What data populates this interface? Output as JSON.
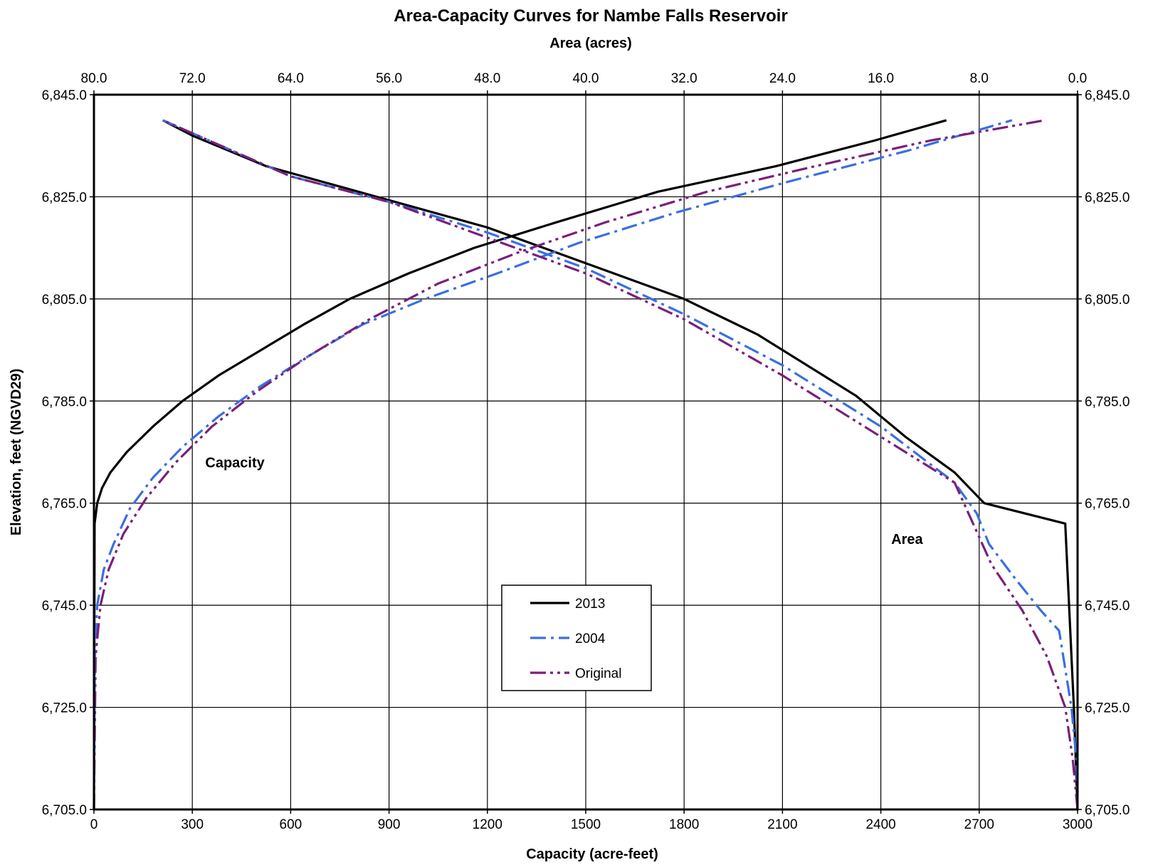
{
  "chart_data": {
    "type": "line",
    "title": "Area-Capacity Curves for Nambe Falls Reservoir",
    "top_axis_label": "Area (acres)",
    "xlabel": "Capacity (acre-feet)",
    "ylabel": "Elevation, feet (NGVD29)",
    "xlim": [
      0,
      3000
    ],
    "top_xlim": [
      80,
      0
    ],
    "ylim": [
      6705,
      6845
    ],
    "x_ticks": [
      "0",
      "300",
      "600",
      "900",
      "1200",
      "1500",
      "1800",
      "2100",
      "2400",
      "2700",
      "3000"
    ],
    "top_ticks": [
      "80.0",
      "72.0",
      "64.0",
      "56.0",
      "48.0",
      "40.0",
      "32.0",
      "24.0",
      "16.0",
      "8.0",
      "0.0"
    ],
    "y_ticks": [
      "6,705.0",
      "6,725.0",
      "6,745.0",
      "6,765.0",
      "6,785.0",
      "6,805.0",
      "6,825.0",
      "6,845.0"
    ],
    "grid": true,
    "legend_position": "bottom-center",
    "annotations": [
      {
        "text": "Capacity",
        "x": 430,
        "y": 6772
      },
      {
        "text": "Area",
        "x": 2480,
        "y": 6757
      }
    ],
    "series": [
      {
        "name": "2013",
        "color": "#000000",
        "dash": "solid",
        "capacity": {
          "x": [
            0,
            2,
            10,
            25,
            50,
            100,
            180,
            270,
            380,
            510,
            640,
            780,
            960,
            1160,
            1410,
            1720,
            2080,
            2380,
            2600
          ],
          "y": [
            6705,
            6761,
            6765,
            6768,
            6771,
            6775,
            6780,
            6785,
            6790,
            6795,
            6800,
            6805,
            6810,
            6815,
            6820,
            6826,
            6831,
            6836,
            6840
          ]
        },
        "area": {
          "x": [
            0.0,
            0.3,
            1.0,
            7.6,
            10.0,
            14.0,
            18.0,
            22.0,
            26.0,
            32.0,
            40.0,
            48.0,
            54.0,
            60.0,
            66.0,
            72.0,
            74.4
          ],
          "y": [
            6705,
            6725,
            6761,
            6765,
            6771,
            6778,
            6786,
            6792,
            6798,
            6805,
            6812,
            6819,
            6823,
            6827,
            6831,
            6837,
            6840
          ]
        }
      },
      {
        "name": "2004",
        "color": "#3a6fe0",
        "dash": "dashdot",
        "capacity": {
          "x": [
            0,
            3,
            10,
            30,
            60,
            110,
            180,
            270,
            380,
            510,
            660,
            820,
            1010,
            1230,
            1480,
            1780,
            2120,
            2480,
            2800
          ],
          "y": [
            6705,
            6735,
            6745,
            6752,
            6757,
            6764,
            6770,
            6776,
            6782,
            6788,
            6794,
            6800,
            6805,
            6810,
            6816,
            6822,
            6828,
            6834,
            6840
          ]
        },
        "area": {
          "x": [
            0.0,
            0.1,
            0.5,
            1.5,
            3.0,
            5.0,
            7.2,
            8.2,
            10.0,
            16.0,
            24.0,
            32.0,
            40.0,
            48.0,
            56.0,
            64.0,
            74.4
          ],
          "y": [
            6705,
            6715,
            6725,
            6740,
            6744,
            6750,
            6757,
            6763,
            6769,
            6780,
            6792,
            6802,
            6811,
            6818,
            6824,
            6829,
            6840
          ]
        }
      },
      {
        "name": "Original",
        "color": "#7a1f7a",
        "dash": "dashdotdot",
        "capacity": {
          "x": [
            0,
            5,
            20,
            45,
            90,
            160,
            250,
            360,
            500,
            660,
            840,
            1050,
            1290,
            1560,
            1870,
            2200,
            2550,
            2900
          ],
          "y": [
            6705,
            6735,
            6745,
            6752,
            6759,
            6766,
            6773,
            6780,
            6787,
            6794,
            6801,
            6808,
            6814,
            6820,
            6826,
            6831,
            6836,
            6840
          ]
        },
        "area": {
          "x": [
            0.0,
            0.4,
            1.0,
            2.5,
            4.5,
            7.0,
            10.0,
            16.0,
            24.0,
            32.0,
            40.0,
            48.0,
            56.0,
            64.0,
            74.4
          ],
          "y": [
            6705,
            6715,
            6725,
            6735,
            6744,
            6753,
            6769,
            6778,
            6790,
            6801,
            6810,
            6817,
            6824,
            6829,
            6840
          ]
        }
      }
    ]
  }
}
